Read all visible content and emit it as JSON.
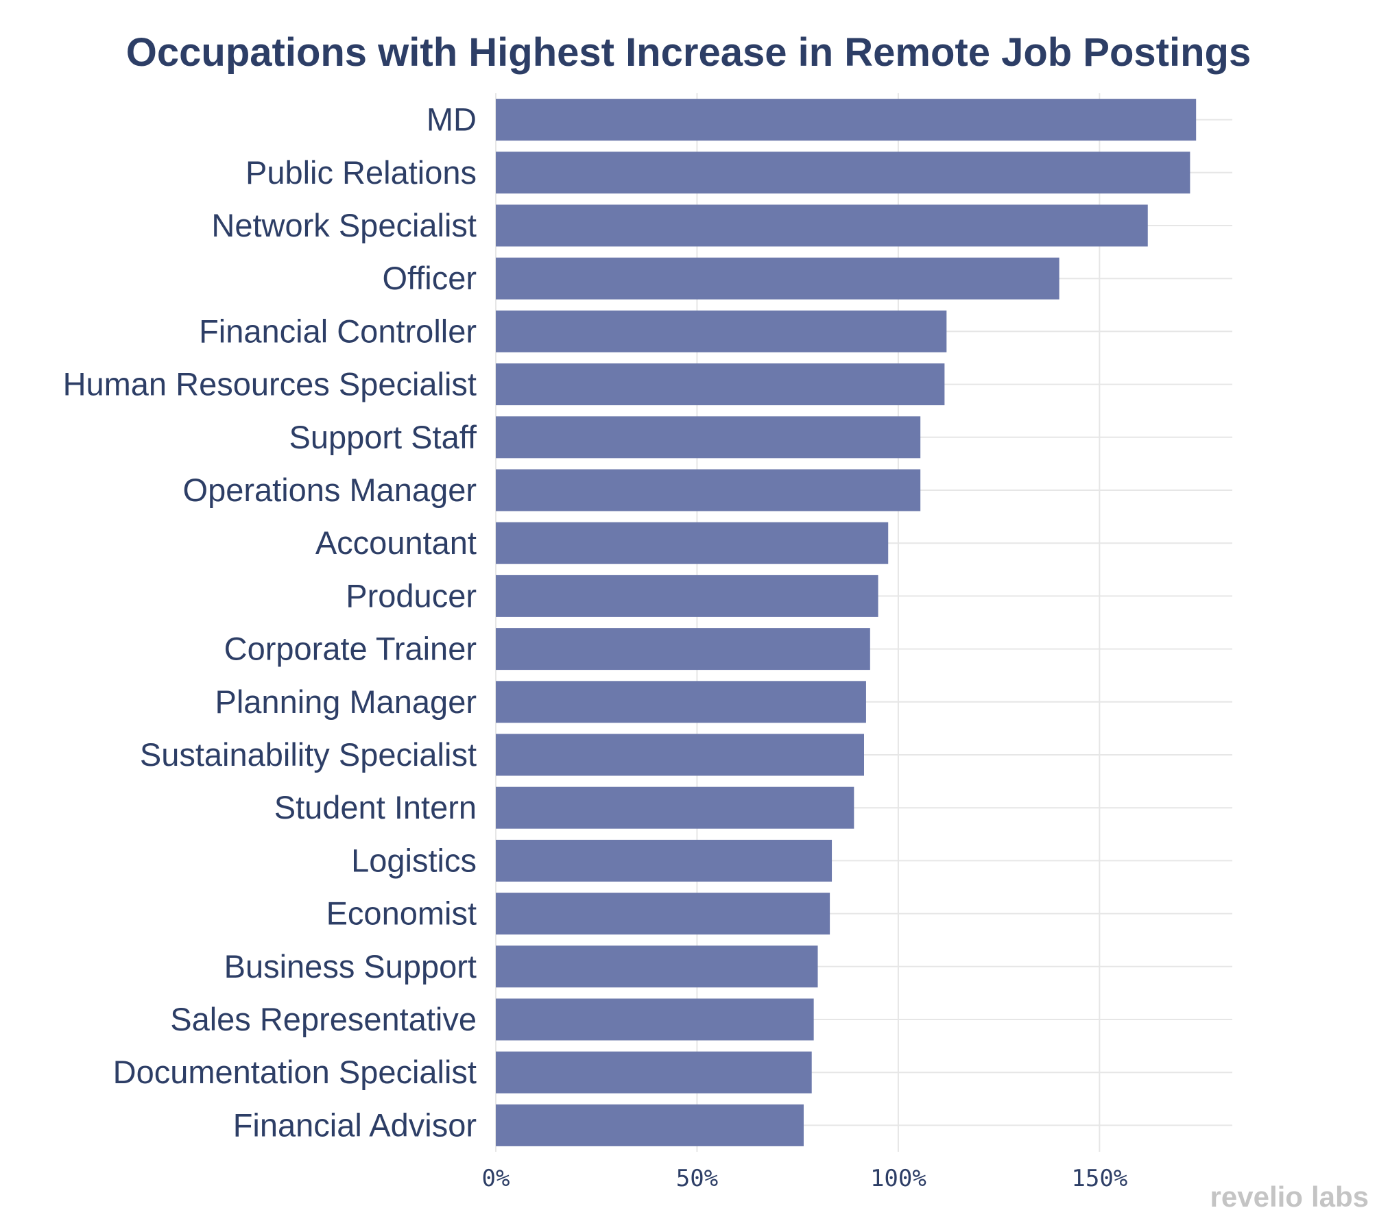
{
  "chart_data": {
    "type": "bar",
    "orientation": "horizontal",
    "title": "Occupations with Highest Increase in Remote Job Postings",
    "categories": [
      "MD",
      "Public Relations",
      "Network Specialist",
      "Officer",
      "Financial Controller",
      "Human Resources Specialist",
      "Support Staff",
      "Operations Manager",
      "Accountant",
      "Producer",
      "Corporate Trainer",
      "Planning Manager",
      "Sustainability Specialist",
      "Student Intern",
      "Logistics",
      "Economist",
      "Business Support",
      "Sales Representative",
      "Documentation Specialist",
      "Financial Advisor"
    ],
    "values": [
      174,
      172.5,
      162,
      140,
      112,
      111.5,
      105.5,
      105.5,
      97.5,
      95,
      93,
      92,
      91.5,
      89,
      83.5,
      83,
      80,
      79,
      78.5,
      76.5
    ],
    "xlim": [
      0,
      183
    ],
    "xticks": [
      0,
      50,
      100,
      150
    ],
    "xtick_labels": [
      "0%",
      "50%",
      "100%",
      "150%"
    ],
    "grid": true,
    "bar_color": "#6c79ab",
    "text_color": "#2d3e66",
    "grid_color": "#e6e6e6",
    "logo_color": "#c4c4c4"
  },
  "watermark": {
    "text_left": "revelio",
    "text_right": "labs"
  }
}
